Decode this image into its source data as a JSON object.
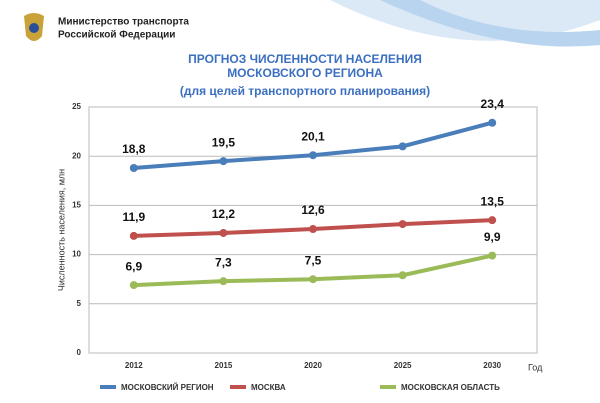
{
  "header": {
    "line1": "Министерство транспорта",
    "line2": "Российской Федерации"
  },
  "chart_data": {
    "type": "line",
    "title": [
      "ПРОГНОЗ ЧИСЛЕННОСТИ НАСЕЛЕНИЯ",
      "МОСКОВСКОГО РЕГИОНА"
    ],
    "subtitle": "(для целей транспортного планирования)",
    "ylabel": "Численность населения, млн",
    "xlabel": "Год",
    "categories": [
      "2012",
      "2015",
      "2020",
      "2025",
      "2030"
    ],
    "ylim": [
      0,
      25
    ],
    "yticks": [
      0,
      5,
      10,
      15,
      20,
      25
    ],
    "series": [
      {
        "name": "МОСКОВСКИЙ РЕГИОН",
        "color": "#4a7ebb",
        "values": [
          18.8,
          19.5,
          20.1,
          21.0,
          23.4
        ],
        "value_labels": [
          "18,8",
          "19,5",
          "20,1",
          null,
          "23,4"
        ]
      },
      {
        "name": "МОСКВА",
        "color": "#c0504d",
        "values": [
          11.9,
          12.2,
          12.6,
          13.1,
          13.5
        ],
        "value_labels": [
          "11,9",
          "12,2",
          "12,6",
          null,
          "13,5"
        ]
      },
      {
        "name": "МОСКОВСКАЯ ОБЛАСТЬ",
        "color": "#9bbb59",
        "values": [
          6.9,
          7.3,
          7.5,
          7.9,
          9.9
        ],
        "value_labels": [
          "6,9",
          "7,3",
          "7,5",
          null,
          "9,9"
        ]
      }
    ]
  }
}
